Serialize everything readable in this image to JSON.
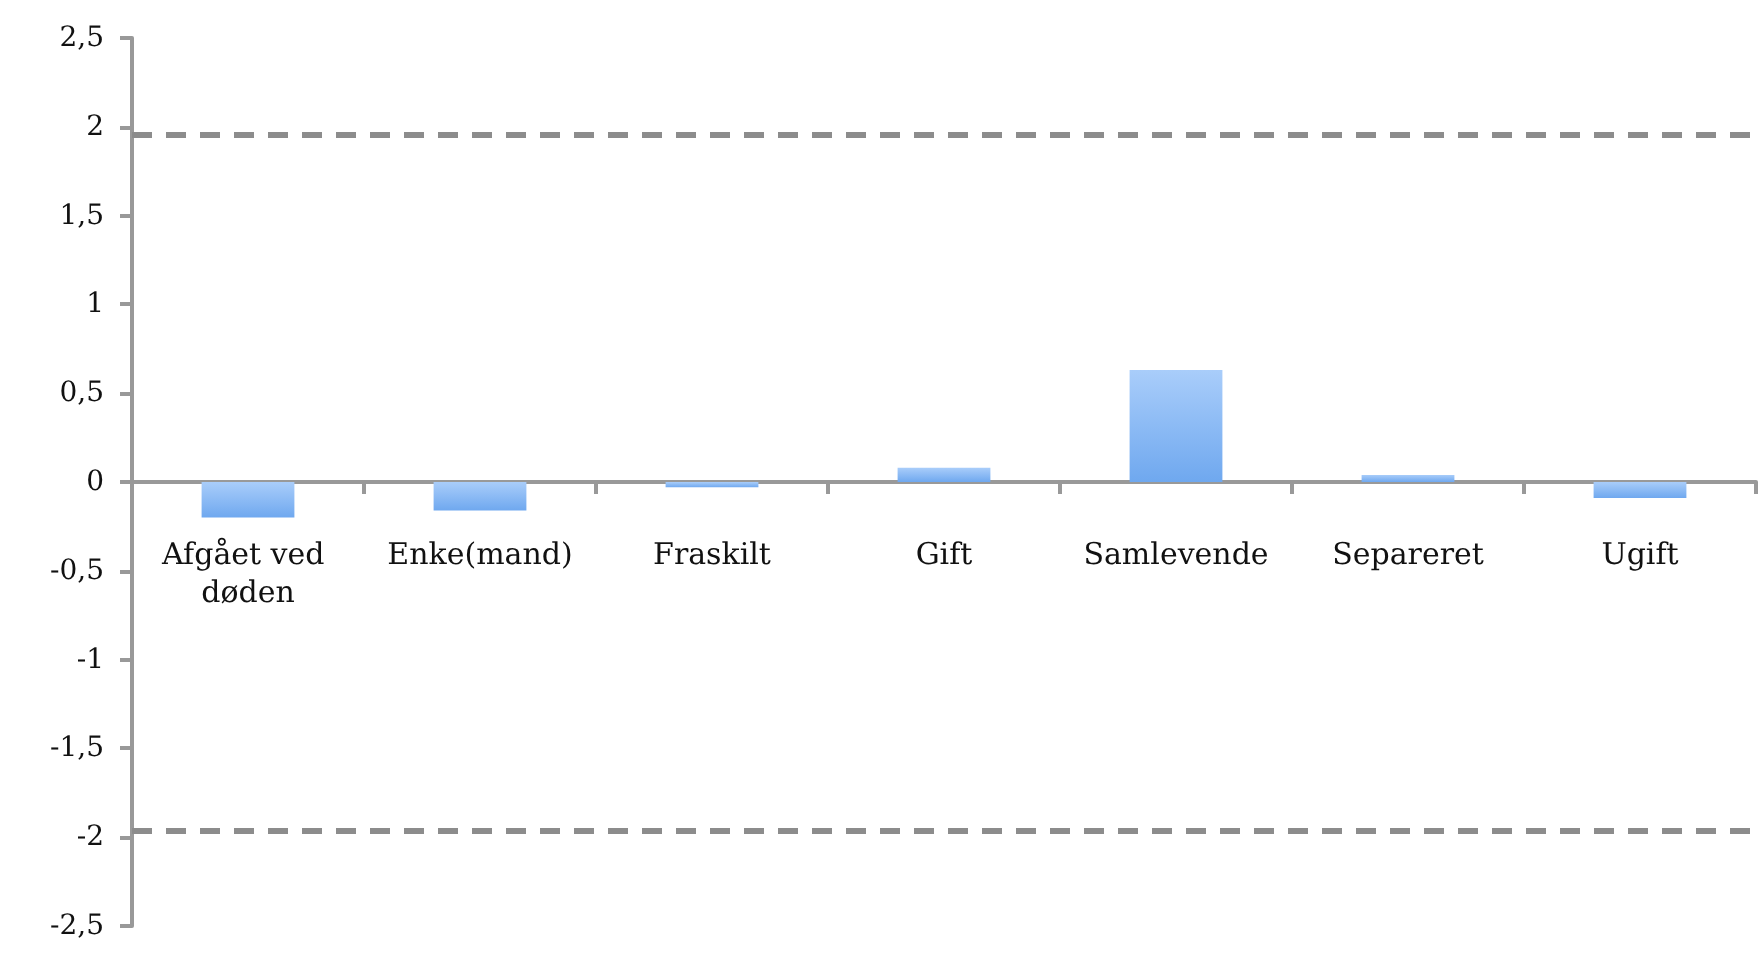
{
  "chart_data": {
    "type": "bar",
    "categories": [
      "Afgået ved døden",
      "Enke(mand)",
      "Fraskilt",
      "Gift",
      "Samlevende",
      "Separeret",
      "Ugift"
    ],
    "values": [
      -0.2,
      -0.16,
      -0.03,
      0.08,
      0.63,
      0.04,
      -0.09
    ],
    "color": "#6fa8ef",
    "ylim": [
      -2.5,
      2.5
    ],
    "yticks": [
      {
        "value": -2.5,
        "label": "-2,5"
      },
      {
        "value": -2,
        "label": "-2"
      },
      {
        "value": -1.5,
        "label": "-1,5"
      },
      {
        "value": -1,
        "label": "-1"
      },
      {
        "value": -0.5,
        "label": "-0,5"
      },
      {
        "value": 0,
        "label": "0"
      },
      {
        "value": 0.5,
        "label": "0,5"
      },
      {
        "value": 1,
        "label": "1"
      },
      {
        "value": 1.5,
        "label": "1,5"
      },
      {
        "value": 2,
        "label": "2"
      },
      {
        "value": 2.5,
        "label": "2,5"
      }
    ],
    "ref_lines": [
      {
        "axis": "y",
        "value": 1.96,
        "color": "#8c8c8c",
        "line_style": "dashed"
      },
      {
        "axis": "y",
        "value": -1.96,
        "color": "#8c8c8c",
        "line_style": "dashed"
      }
    ]
  }
}
